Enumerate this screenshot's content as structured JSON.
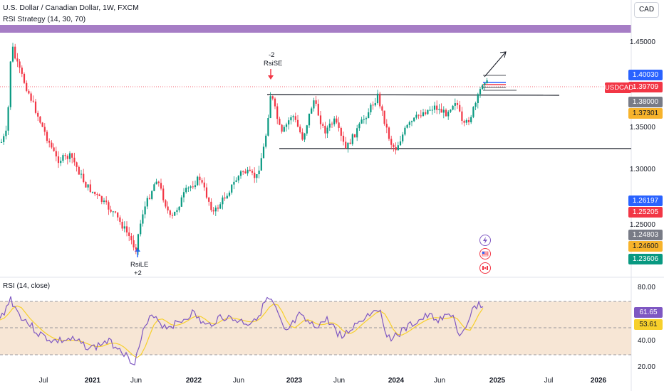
{
  "header": {
    "title": "U.S. Dollar / Canadian Dollar, 1W, FXCM",
    "subtitle": "RSI Strategy (14, 30, 70)",
    "currency_button": "CAD"
  },
  "price_axis": {
    "ticks": [
      "1.45000",
      "1.35000",
      "1.30000",
      "1.25000"
    ]
  },
  "price_tags": [
    {
      "label": "1.40030",
      "color": "#2962ff"
    },
    {
      "label": "1.39709",
      "color": "#f23645"
    },
    {
      "label": "1.38000",
      "color": "#787b86"
    },
    {
      "label": "1.37301",
      "color": "#f7b32b"
    },
    {
      "label": "1.26197",
      "color": "#2962ff"
    },
    {
      "label": "1.25205",
      "color": "#f23645"
    },
    {
      "label": "1.24803",
      "color": "#787b86"
    },
    {
      "label": "1.24600",
      "color": "#f7b32b"
    },
    {
      "label": "1.23606",
      "color": "#089981"
    }
  ],
  "symbol_tag": "USDCAD",
  "signals": {
    "short_top": "-2",
    "short_label": "RsiSE",
    "long_label": "RsiLE",
    "long_bottom": "+2"
  },
  "rsi": {
    "title": "RSI (14, close)",
    "ticks": [
      "80.00",
      "40.00",
      "20.00"
    ],
    "value": "61.65",
    "ma_value": "53.61",
    "value_color": "#7e57c2",
    "ma_color": "#f7d02b"
  },
  "time_axis": [
    "Jul",
    "2021",
    "Jun",
    "2022",
    "Jun",
    "2023",
    "Jun",
    "2024",
    "Jun",
    "2025",
    "Jul",
    "2026"
  ],
  "colors": {
    "up": "#089981",
    "down": "#f23645",
    "band": "#9c6fbf",
    "rsi_line": "#7e57c2",
    "rsi_ma": "#f7d02b"
  },
  "icons": [
    "lightning-icon",
    "us-flag-icon",
    "canada-flag-icon"
  ]
}
